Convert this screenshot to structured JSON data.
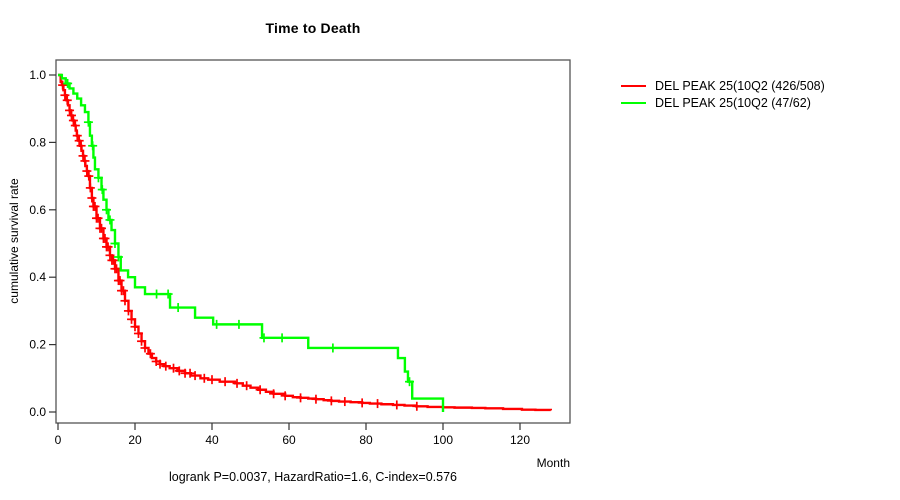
{
  "title": "Time to Death",
  "axes": {
    "x": {
      "label": "Month"
    },
    "y": {
      "label": "cumulative survival rate"
    }
  },
  "legend": [
    {
      "label": "DEL PEAK 25(10Q2 (426/508)",
      "color": "#ff0000"
    },
    {
      "label": "DEL PEAK 25(10Q2 (47/62)",
      "color": "#00ff00"
    }
  ],
  "footer": "logrank P=0.0037, HazardRatio=1.6, C-index=0.576",
  "colors": {
    "frame": "#555555",
    "tick": "#333333"
  },
  "chart_data": {
    "type": "line",
    "subtype": "kaplan-meier-step",
    "title": "Time to Death",
    "xlabel": "Month",
    "ylabel": "cumulative survival rate",
    "xlim": [
      0,
      133
    ],
    "ylim": [
      0,
      1.0
    ],
    "x_ticks": [
      0,
      20,
      40,
      60,
      80,
      100,
      120
    ],
    "y_ticks": [
      "0.0",
      "0.2",
      "0.4",
      "0.6",
      "0.8",
      "1.0"
    ],
    "grid": false,
    "legend_position": "right-outside",
    "series": [
      {
        "name": "DEL PEAK 25(10Q2 (426/508)",
        "color": "#ff0000",
        "points": [
          [
            0,
            1.0
          ],
          [
            0.7,
            0.98
          ],
          [
            1,
            0.97
          ],
          [
            1.4,
            0.955
          ],
          [
            1.8,
            0.94
          ],
          [
            2.2,
            0.925
          ],
          [
            2.6,
            0.91
          ],
          [
            3,
            0.895
          ],
          [
            3.4,
            0.88
          ],
          [
            3.8,
            0.865
          ],
          [
            4.2,
            0.85
          ],
          [
            4.6,
            0.835
          ],
          [
            4.9,
            0.82
          ],
          [
            5.3,
            0.805
          ],
          [
            5.7,
            0.79
          ],
          [
            6.1,
            0.775
          ],
          [
            6.5,
            0.76
          ],
          [
            6.8,
            0.745
          ],
          [
            7.1,
            0.73
          ],
          [
            7.5,
            0.715
          ],
          [
            7.9,
            0.7
          ],
          [
            8.3,
            0.665
          ],
          [
            8.8,
            0.635
          ],
          [
            9.2,
            0.61
          ],
          [
            10,
            0.575
          ],
          [
            10.9,
            0.545
          ],
          [
            11.8,
            0.515
          ],
          [
            12.6,
            0.49
          ],
          [
            13.5,
            0.465
          ],
          [
            14,
            0.45
          ],
          [
            14.8,
            0.425
          ],
          [
            15.7,
            0.39
          ],
          [
            16.5,
            0.36
          ],
          [
            17.4,
            0.33
          ],
          [
            18.3,
            0.3
          ],
          [
            19.1,
            0.275
          ],
          [
            20,
            0.253
          ],
          [
            20.9,
            0.233
          ],
          [
            21.7,
            0.21
          ],
          [
            22.6,
            0.19
          ],
          [
            23.5,
            0.173
          ],
          [
            24.4,
            0.16
          ],
          [
            25.5,
            0.15
          ],
          [
            26.5,
            0.142
          ],
          [
            27.5,
            0.136
          ],
          [
            29,
            0.13
          ],
          [
            31,
            0.122
          ],
          [
            33,
            0.115
          ],
          [
            34.5,
            0.108
          ],
          [
            37,
            0.1
          ],
          [
            39,
            0.096
          ],
          [
            42,
            0.09
          ],
          [
            46,
            0.085
          ],
          [
            48,
            0.078
          ],
          [
            50,
            0.072
          ],
          [
            52,
            0.066
          ],
          [
            54,
            0.06
          ],
          [
            56,
            0.054
          ],
          [
            59,
            0.048
          ],
          [
            61,
            0.044
          ],
          [
            63,
            0.042
          ],
          [
            65,
            0.04
          ],
          [
            67,
            0.038
          ],
          [
            69,
            0.035
          ],
          [
            71,
            0.033
          ],
          [
            73,
            0.031
          ],
          [
            76,
            0.029
          ],
          [
            79,
            0.027
          ],
          [
            81,
            0.025
          ],
          [
            84,
            0.023
          ],
          [
            87,
            0.021
          ],
          [
            90,
            0.019
          ],
          [
            93,
            0.017
          ],
          [
            96,
            0.015
          ],
          [
            100,
            0.014
          ],
          [
            103,
            0.013
          ],
          [
            107.5,
            0.012
          ],
          [
            111,
            0.011
          ],
          [
            115.6,
            0.009
          ],
          [
            120.5,
            0.007
          ],
          [
            124,
            0.006
          ],
          [
            128,
            0.005
          ]
        ],
        "censor_months": [
          1.2,
          1.8,
          2.4,
          3,
          3.5,
          4,
          4.5,
          5,
          5.5,
          6,
          6.5,
          7,
          7.5,
          8,
          8.4,
          8.8,
          9.2,
          9.6,
          10,
          10.4,
          10.9,
          11.3,
          11.8,
          12.2,
          12.6,
          13,
          13.5,
          14,
          14.4,
          14.8,
          15.2,
          15.7,
          16.1,
          16.5,
          17,
          17.4,
          18.3,
          19.1,
          20,
          20.9,
          21.7,
          22.6,
          24,
          25.5,
          26.5,
          28,
          30,
          31.5,
          33,
          34.3,
          35.6,
          38,
          40,
          43.4,
          46.5,
          49,
          52.5,
          56,
          59,
          63,
          67,
          71,
          74.5,
          79,
          83,
          88,
          93.2
        ]
      },
      {
        "name": "DEL PEAK 25(10Q2 (47/62)",
        "color": "#00ff00",
        "points": [
          [
            0,
            1.0
          ],
          [
            1,
            0.99
          ],
          [
            2,
            0.975
          ],
          [
            3,
            0.96
          ],
          [
            4,
            0.945
          ],
          [
            5,
            0.93
          ],
          [
            6,
            0.91
          ],
          [
            7,
            0.89
          ],
          [
            7.9,
            0.86
          ],
          [
            8.3,
            0.82
          ],
          [
            8.8,
            0.79
          ],
          [
            9.2,
            0.755
          ],
          [
            9.6,
            0.72
          ],
          [
            10.5,
            0.695
          ],
          [
            11.3,
            0.66
          ],
          [
            11.8,
            0.63
          ],
          [
            12.6,
            0.6
          ],
          [
            13.1,
            0.57
          ],
          [
            13.9,
            0.54
          ],
          [
            14.8,
            0.5
          ],
          [
            15.7,
            0.46
          ],
          [
            16.3,
            0.42
          ],
          [
            18.2,
            0.4
          ],
          [
            20,
            0.37
          ],
          [
            22.6,
            0.35
          ],
          [
            29.1,
            0.31
          ],
          [
            35.6,
            0.28
          ],
          [
            40.3,
            0.26
          ],
          [
            53,
            0.22
          ],
          [
            65,
            0.19
          ],
          [
            88.3,
            0.16
          ],
          [
            90.1,
            0.12
          ],
          [
            90.9,
            0.09
          ],
          [
            92,
            0.04
          ],
          [
            100,
            0.0
          ]
        ],
        "censor_months": [
          2.5,
          7.9,
          9.0,
          10.5,
          11.5,
          12.6,
          13.5,
          14.8,
          15.7,
          25.6,
          28.6,
          31.2,
          41.2,
          47,
          53.5,
          58.2,
          71.4,
          91.3
        ]
      }
    ]
  }
}
